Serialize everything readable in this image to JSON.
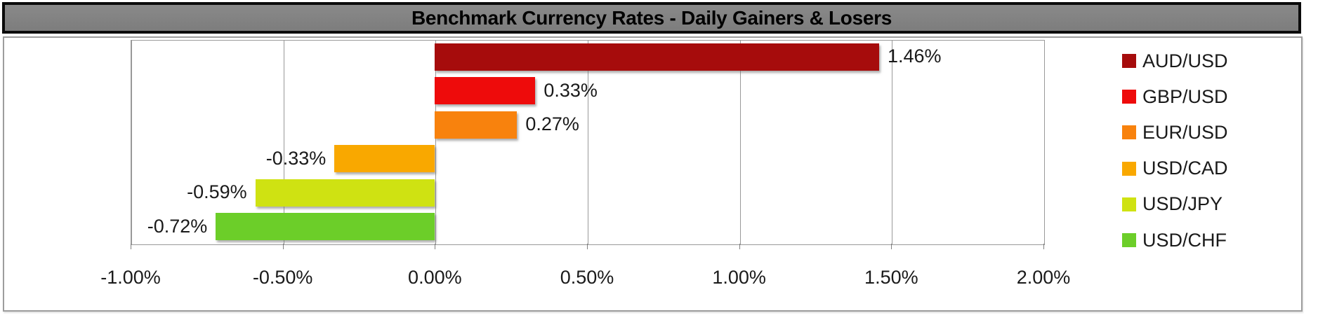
{
  "chart_data": {
    "type": "bar",
    "orientation": "horizontal",
    "title": "Benchmark Currency Rates - Daily Gainers & Losers",
    "series": [
      {
        "name": "AUD/USD",
        "value": 1.46,
        "label": "1.46%",
        "color": "#A60C0C"
      },
      {
        "name": "GBP/USD",
        "value": 0.33,
        "label": "0.33%",
        "color": "#EE0B0B"
      },
      {
        "name": "EUR/USD",
        "value": 0.27,
        "label": "0.27%",
        "color": "#F8820D"
      },
      {
        "name": "USD/CAD",
        "value": -0.33,
        "label": "-0.33%",
        "color": "#F9A800"
      },
      {
        "name": "USD/JPY",
        "value": -0.59,
        "label": "-0.59%",
        "color": "#CFE212"
      },
      {
        "name": "USD/CHF",
        "value": -0.72,
        "label": "-0.72%",
        "color": "#6CCE29"
      }
    ],
    "x_axis": {
      "min": -1.0,
      "max": 2.0,
      "step": 0.5,
      "ticks": [
        {
          "value": -1.0,
          "label": "-1.00%"
        },
        {
          "value": -0.5,
          "label": "-0.50%"
        },
        {
          "value": 0.0,
          "label": "0.00%"
        },
        {
          "value": 0.5,
          "label": "0.50%"
        },
        {
          "value": 1.0,
          "label": "1.00%"
        },
        {
          "value": 1.5,
          "label": "1.50%"
        },
        {
          "value": 2.0,
          "label": "2.00%"
        }
      ]
    },
    "grid": true,
    "legend_position": "right",
    "legend": [
      "AUD/USD",
      "GBP/USD",
      "EUR/USD",
      "USD/CAD",
      "USD/JPY",
      "USD/CHF"
    ]
  },
  "colors": {
    "title_bg": "#7F7F7F",
    "title_text": "#000000",
    "grid": "#999999",
    "axis_text": "#1A1A1A"
  }
}
